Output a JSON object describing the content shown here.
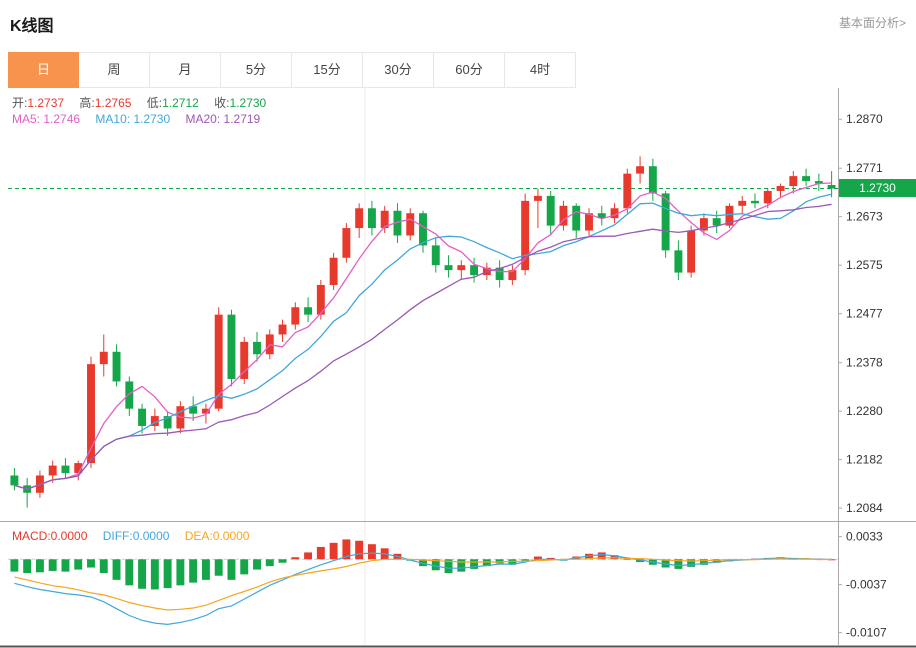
{
  "header": {
    "title": "K线图",
    "link": "基本面分析>"
  },
  "tabs": {
    "items": [
      "日",
      "周",
      "月",
      "5分",
      "15分",
      "30分",
      "60分",
      "4时"
    ],
    "active_index": 0
  },
  "legend": {
    "ohlc": [
      {
        "label": "开:",
        "value": "1.2737",
        "color": "#e8392d"
      },
      {
        "label": "高:",
        "value": "1.2765",
        "color": "#e8392d"
      },
      {
        "label": "低:",
        "value": "1.2712",
        "color": "#14a649"
      },
      {
        "label": "收:",
        "value": "1.2730",
        "color": "#14a649"
      }
    ],
    "ma": [
      {
        "label": "MA5:",
        "value": "1.2746",
        "color": "#e35fc8"
      },
      {
        "label": "MA10:",
        "value": "1.2730",
        "color": "#41a8dc"
      },
      {
        "label": "MA20:",
        "value": "1.2719",
        "color": "#9b59b6"
      }
    ],
    "macd": [
      {
        "label": "MACD:",
        "value": "0.0000",
        "color": "#e8392d"
      },
      {
        "label": "DIFF:",
        "value": "0.0000",
        "color": "#41a8dc"
      },
      {
        "label": "DEA:",
        "value": "0.0000",
        "color": "#f5a623"
      }
    ]
  },
  "chart_data": {
    "type": "candlestick",
    "title": "K线图",
    "current_price": 1.273,
    "current_price_label": "1.2730",
    "price_axis_labels": [
      1.287,
      1.2771,
      1.2673,
      1.2575,
      1.2477,
      1.2378,
      1.228,
      1.2182,
      1.2084
    ],
    "main_ylim": [
      1.206,
      1.2925
    ],
    "macd_axis_labels": [
      0.0033,
      -0.0037,
      -0.0107
    ],
    "macd_ylim": [
      -0.0125,
      0.005
    ],
    "ma_periods": [
      5,
      10,
      20
    ],
    "vgrid_frac": [
      0.43
    ],
    "colors": {
      "up": "#e8392d",
      "down": "#14a649",
      "ma5": "#e35fc8",
      "ma10": "#41a8dc",
      "ma20": "#9b59b6",
      "diff": "#41a8dc",
      "dea": "#f5a623",
      "price_line": "#14a649"
    },
    "candles": [
      [
        1.215,
        1.2165,
        1.212,
        1.213
      ],
      [
        1.213,
        1.2145,
        1.2085,
        1.2115
      ],
      [
        1.2115,
        1.216,
        1.2105,
        1.215
      ],
      [
        1.215,
        1.218,
        1.2135,
        1.217
      ],
      [
        1.217,
        1.2185,
        1.2145,
        1.2155
      ],
      [
        1.2155,
        1.218,
        1.214,
        1.2175
      ],
      [
        1.2175,
        1.239,
        1.2165,
        1.2375
      ],
      [
        1.2375,
        1.2435,
        1.235,
        1.24
      ],
      [
        1.24,
        1.2415,
        1.233,
        1.234
      ],
      [
        1.234,
        1.235,
        1.227,
        1.2285
      ],
      [
        1.2285,
        1.2295,
        1.2235,
        1.225
      ],
      [
        1.225,
        1.2285,
        1.224,
        1.227
      ],
      [
        1.227,
        1.228,
        1.223,
        1.2245
      ],
      [
        1.2245,
        1.23,
        1.2235,
        1.229
      ],
      [
        1.229,
        1.231,
        1.226,
        1.2275
      ],
      [
        1.2275,
        1.2295,
        1.2255,
        1.2285
      ],
      [
        1.2285,
        1.249,
        1.228,
        1.2475
      ],
      [
        1.2475,
        1.2485,
        1.233,
        1.2345
      ],
      [
        1.2345,
        1.243,
        1.2335,
        1.242
      ],
      [
        1.242,
        1.244,
        1.238,
        1.2395
      ],
      [
        1.2395,
        1.2445,
        1.2385,
        1.2435
      ],
      [
        1.2435,
        1.2465,
        1.242,
        1.2455
      ],
      [
        1.2455,
        1.25,
        1.2445,
        1.249
      ],
      [
        1.249,
        1.251,
        1.246,
        1.2475
      ],
      [
        1.2475,
        1.2545,
        1.2465,
        1.2535
      ],
      [
        1.2535,
        1.26,
        1.2525,
        1.259
      ],
      [
        1.259,
        1.266,
        1.258,
        1.265
      ],
      [
        1.265,
        1.27,
        1.263,
        1.269
      ],
      [
        1.269,
        1.2705,
        1.2635,
        1.265
      ],
      [
        1.265,
        1.2695,
        1.264,
        1.2685
      ],
      [
        1.2685,
        1.27,
        1.262,
        1.2635
      ],
      [
        1.2635,
        1.269,
        1.2625,
        1.268
      ],
      [
        1.268,
        1.2685,
        1.26,
        1.2615
      ],
      [
        1.2615,
        1.263,
        1.256,
        1.2575
      ],
      [
        1.2575,
        1.2595,
        1.255,
        1.2565
      ],
      [
        1.2565,
        1.2585,
        1.2545,
        1.2575
      ],
      [
        1.2575,
        1.259,
        1.254,
        1.2555
      ],
      [
        1.2555,
        1.258,
        1.2545,
        1.257
      ],
      [
        1.257,
        1.2585,
        1.253,
        1.2545
      ],
      [
        1.2545,
        1.2575,
        1.2535,
        1.2565
      ],
      [
        1.2565,
        1.272,
        1.2555,
        1.2705
      ],
      [
        1.2705,
        1.273,
        1.265,
        1.2715
      ],
      [
        1.2715,
        1.2725,
        1.2635,
        1.2655
      ],
      [
        1.2655,
        1.2705,
        1.2645,
        1.2695
      ],
      [
        1.2695,
        1.27,
        1.263,
        1.2645
      ],
      [
        1.2645,
        1.269,
        1.2635,
        1.268
      ],
      [
        1.268,
        1.2695,
        1.2655,
        1.267
      ],
      [
        1.267,
        1.27,
        1.266,
        1.269
      ],
      [
        1.269,
        1.277,
        1.268,
        1.276
      ],
      [
        1.276,
        1.2795,
        1.274,
        1.2775
      ],
      [
        1.2775,
        1.279,
        1.2705,
        1.272
      ],
      [
        1.272,
        1.2725,
        1.259,
        1.2605
      ],
      [
        1.2605,
        1.2625,
        1.2545,
        1.256
      ],
      [
        1.256,
        1.2655,
        1.255,
        1.2645
      ],
      [
        1.2645,
        1.268,
        1.2635,
        1.267
      ],
      [
        1.267,
        1.2685,
        1.264,
        1.2655
      ],
      [
        1.2655,
        1.27,
        1.265,
        1.2695
      ],
      [
        1.2695,
        1.2715,
        1.268,
        1.2705
      ],
      [
        1.2705,
        1.272,
        1.269,
        1.27
      ],
      [
        1.27,
        1.273,
        1.269,
        1.2725
      ],
      [
        1.2725,
        1.274,
        1.271,
        1.2735
      ],
      [
        1.2735,
        1.2765,
        1.272,
        1.2755
      ],
      [
        1.2755,
        1.277,
        1.2735,
        1.2745
      ],
      [
        1.2745,
        1.276,
        1.2725,
        1.274
      ],
      [
        1.2737,
        1.2765,
        1.2712,
        1.273
      ]
    ],
    "macd_hist": [
      -0.0018,
      -0.002,
      -0.0019,
      -0.0017,
      -0.0018,
      -0.0015,
      -0.0012,
      -0.002,
      -0.003,
      -0.0038,
      -0.0043,
      -0.0044,
      -0.0042,
      -0.0038,
      -0.0034,
      -0.003,
      -0.0024,
      -0.003,
      -0.0022,
      -0.0015,
      -0.001,
      -0.0005,
      0.0003,
      0.001,
      0.0018,
      0.0024,
      0.0029,
      0.0027,
      0.0022,
      0.0016,
      0.0008,
      -0.0002,
      -0.001,
      -0.0016,
      -0.002,
      -0.0018,
      -0.0014,
      -0.001,
      -0.0006,
      -0.0008,
      -0.0002,
      0.0004,
      0.0002,
      -0.0002,
      0.0004,
      0.0008,
      0.001,
      0.0006,
      0.0001,
      -0.0004,
      -0.0008,
      -0.0012,
      -0.0014,
      -0.0011,
      -0.0008,
      -0.0005,
      -0.0003,
      -0.0001,
      0.0001,
      0.0002,
      0.0003,
      0.0002,
      0.0001,
      0.0001,
      0.0
    ],
    "macd_diff": [
      -0.0035,
      -0.004,
      -0.0044,
      -0.0047,
      -0.005,
      -0.0052,
      -0.0055,
      -0.0062,
      -0.0072,
      -0.0082,
      -0.0089,
      -0.0093,
      -0.0095,
      -0.0092,
      -0.0088,
      -0.0082,
      -0.0072,
      -0.0068,
      -0.0058,
      -0.0048,
      -0.0038,
      -0.003,
      -0.0022,
      -0.0015,
      -0.0008,
      -0.0002,
      0.0004,
      0.0008,
      0.0009,
      0.0008,
      0.0004,
      -0.0001,
      -0.0006,
      -0.001,
      -0.0013,
      -0.0013,
      -0.0011,
      -0.0009,
      -0.0007,
      -0.0007,
      -0.0004,
      0.0,
      0.0,
      -0.0001,
      0.0002,
      0.0005,
      0.0007,
      0.0005,
      0.0002,
      -0.0001,
      -0.0004,
      -0.0007,
      -0.0009,
      -0.0008,
      -0.0006,
      -0.0004,
      -0.0002,
      -0.0001,
      0.0,
      0.0001,
      0.0002,
      0.0001,
      0.0001,
      0.0,
      0.0
    ]
  }
}
